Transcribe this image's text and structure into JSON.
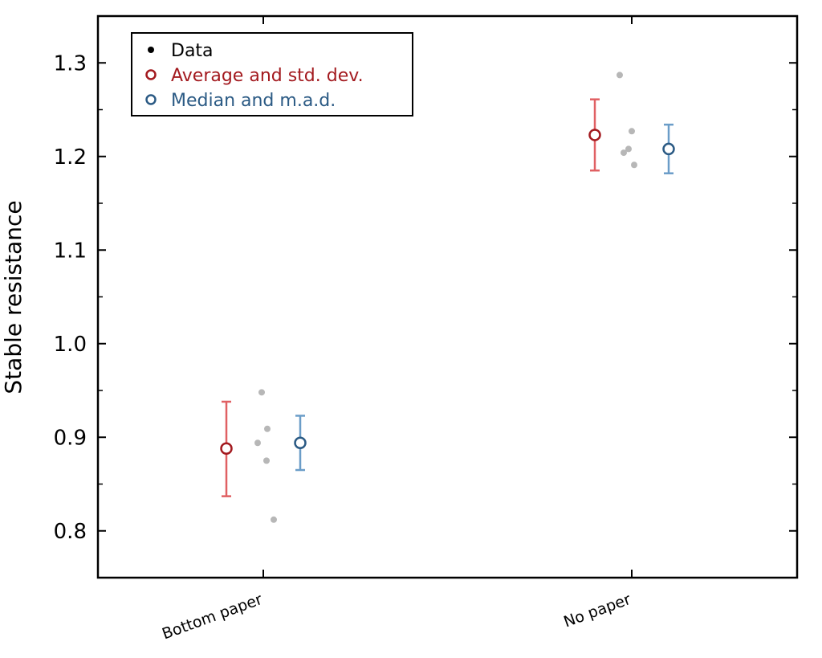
{
  "chart_data": {
    "type": "scatter",
    "title": "",
    "xlabel": "",
    "ylabel": "Stable resistance",
    "ylim": [
      0.75,
      1.35
    ],
    "yticks": [
      "0.8",
      "0.9",
      "1.0",
      "1.1",
      "1.2",
      "1.3"
    ],
    "categories": [
      "Bottom paper",
      "No paper"
    ],
    "grid": false,
    "legend": {
      "position": "top-left",
      "entries": [
        {
          "label": "Data",
          "color": "#000000",
          "marker": "filled-dot"
        },
        {
          "label": "Average and std. dev.",
          "color": "#a31a1f",
          "marker": "open-circle"
        },
        {
          "label": "Median and m.a.d.",
          "color": "#2b5a84",
          "marker": "open-circle"
        }
      ]
    },
    "series": [
      {
        "name": "Data",
        "points": [
          {
            "category": "Bottom paper",
            "values": [
              0.948,
              0.909,
              0.894,
              0.875,
              0.812
            ]
          },
          {
            "category": "No paper",
            "values": [
              1.287,
              1.227,
              1.208,
              1.204,
              1.191
            ]
          }
        ]
      },
      {
        "name": "Average and std. dev.",
        "points": [
          {
            "category": "Bottom paper",
            "value": 0.888,
            "low": 0.837,
            "high": 0.938
          },
          {
            "category": "No paper",
            "value": 1.223,
            "low": 1.185,
            "high": 1.261
          }
        ]
      },
      {
        "name": "Median and m.a.d.",
        "points": [
          {
            "category": "Bottom paper",
            "value": 0.894,
            "low": 0.865,
            "high": 0.923
          },
          {
            "category": "No paper",
            "value": 1.208,
            "low": 1.182,
            "high": 1.234
          }
        ]
      }
    ],
    "colors": {
      "data_points": "#aaaaaa",
      "avg_marker": "#a31a1f",
      "avg_errorbar": "#e06063",
      "med_marker": "#2b5a84",
      "med_errorbar": "#6b9dc8"
    }
  }
}
